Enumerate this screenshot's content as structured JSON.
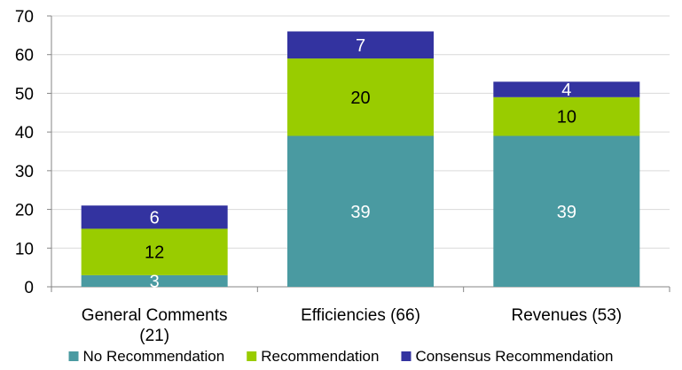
{
  "chart_data": {
    "type": "bar",
    "stacked": true,
    "categories": [
      [
        "General Comments",
        "(21)"
      ],
      [
        "Efficiencies (66)"
      ],
      [
        "Revenues (53)"
      ]
    ],
    "series": [
      {
        "name": "No Recommendation",
        "values": [
          3,
          39,
          39
        ],
        "color": "#4a9aa1",
        "label_color": "#ffffff"
      },
      {
        "name": "Recommendation",
        "values": [
          12,
          20,
          10
        ],
        "color": "#99cc00",
        "label_color": "#000000"
      },
      {
        "name": "Consensus Recommendation",
        "values": [
          6,
          7,
          4
        ],
        "color": "#3333a0",
        "label_color": "#ffffff"
      }
    ],
    "ylim": [
      0,
      70
    ],
    "yticks": [
      0,
      10,
      20,
      30,
      40,
      50,
      60,
      70
    ],
    "grid": true,
    "legend": "bottom",
    "title": "",
    "xlabel": "",
    "ylabel": ""
  }
}
